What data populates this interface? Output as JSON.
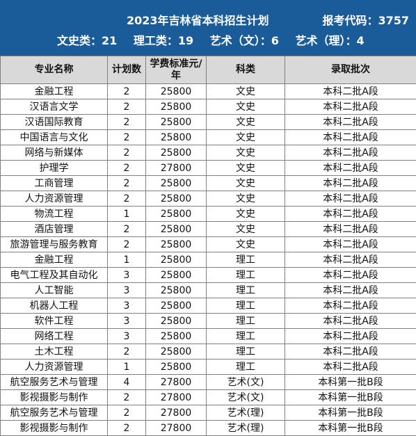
{
  "header": {
    "title": "2023年吉林省本科招生计划",
    "code": "报考代码：3757",
    "counts": [
      "文史类：21",
      "理工类：19",
      "艺术（文）：6",
      "艺术（理）：4"
    ]
  },
  "table": {
    "columns": [
      "专业名称",
      "计划数",
      "学费标准元/年",
      "科类",
      "录取批次"
    ],
    "rows": [
      [
        "金融工程",
        "2",
        "25800",
        "文史",
        "本科二批A段"
      ],
      [
        "汉语言文学",
        "2",
        "25800",
        "文史",
        "本科二批A段"
      ],
      [
        "汉语国际教育",
        "2",
        "25800",
        "文史",
        "本科二批A段"
      ],
      [
        "中国语言与文化",
        "2",
        "25800",
        "文史",
        "本科二批A段"
      ],
      [
        "网络与新媒体",
        "2",
        "25800",
        "文史",
        "本科二批A段"
      ],
      [
        "护理学",
        "2",
        "27800",
        "文史",
        "本科二批A段"
      ],
      [
        "工商管理",
        "2",
        "25800",
        "文史",
        "本科二批A段"
      ],
      [
        "人力资源管理",
        "2",
        "25800",
        "文史",
        "本科二批A段"
      ],
      [
        "物流工程",
        "1",
        "25800",
        "文史",
        "本科二批A段"
      ],
      [
        "酒店管理",
        "2",
        "25800",
        "文史",
        "本科二批A段"
      ],
      [
        "旅游管理与服务教育",
        "2",
        "25800",
        "文史",
        "本科二批A段"
      ],
      [
        "金融工程",
        "1",
        "25800",
        "理工",
        "本科二批A段"
      ],
      [
        "电气工程及其自动化",
        "3",
        "25800",
        "理工",
        "本科二批A段"
      ],
      [
        "人工智能",
        "3",
        "25800",
        "理工",
        "本科二批A段"
      ],
      [
        "机器人工程",
        "3",
        "25800",
        "理工",
        "本科二批A段"
      ],
      [
        "软件工程",
        "3",
        "25800",
        "理工",
        "本科二批A段"
      ],
      [
        "网络工程",
        "3",
        "25800",
        "理工",
        "本科二批A段"
      ],
      [
        "土木工程",
        "2",
        "25800",
        "理工",
        "本科二批A段"
      ],
      [
        "人力资源管理",
        "1",
        "25800",
        "理工",
        "本科二批A段"
      ],
      [
        "航空服务艺术与管理",
        "4",
        "27800",
        "艺术(文)",
        "本科第一批B段"
      ],
      [
        "影视摄影与制作",
        "2",
        "27800",
        "艺术(文)",
        "本科第一批B段"
      ],
      [
        "航空服务艺术与管理",
        "2",
        "27800",
        "艺术(理)",
        "本科第一批B段"
      ],
      [
        "影视摄影与制作",
        "2",
        "27800",
        "艺术(理)",
        "本科第一批B段"
      ]
    ]
  }
}
